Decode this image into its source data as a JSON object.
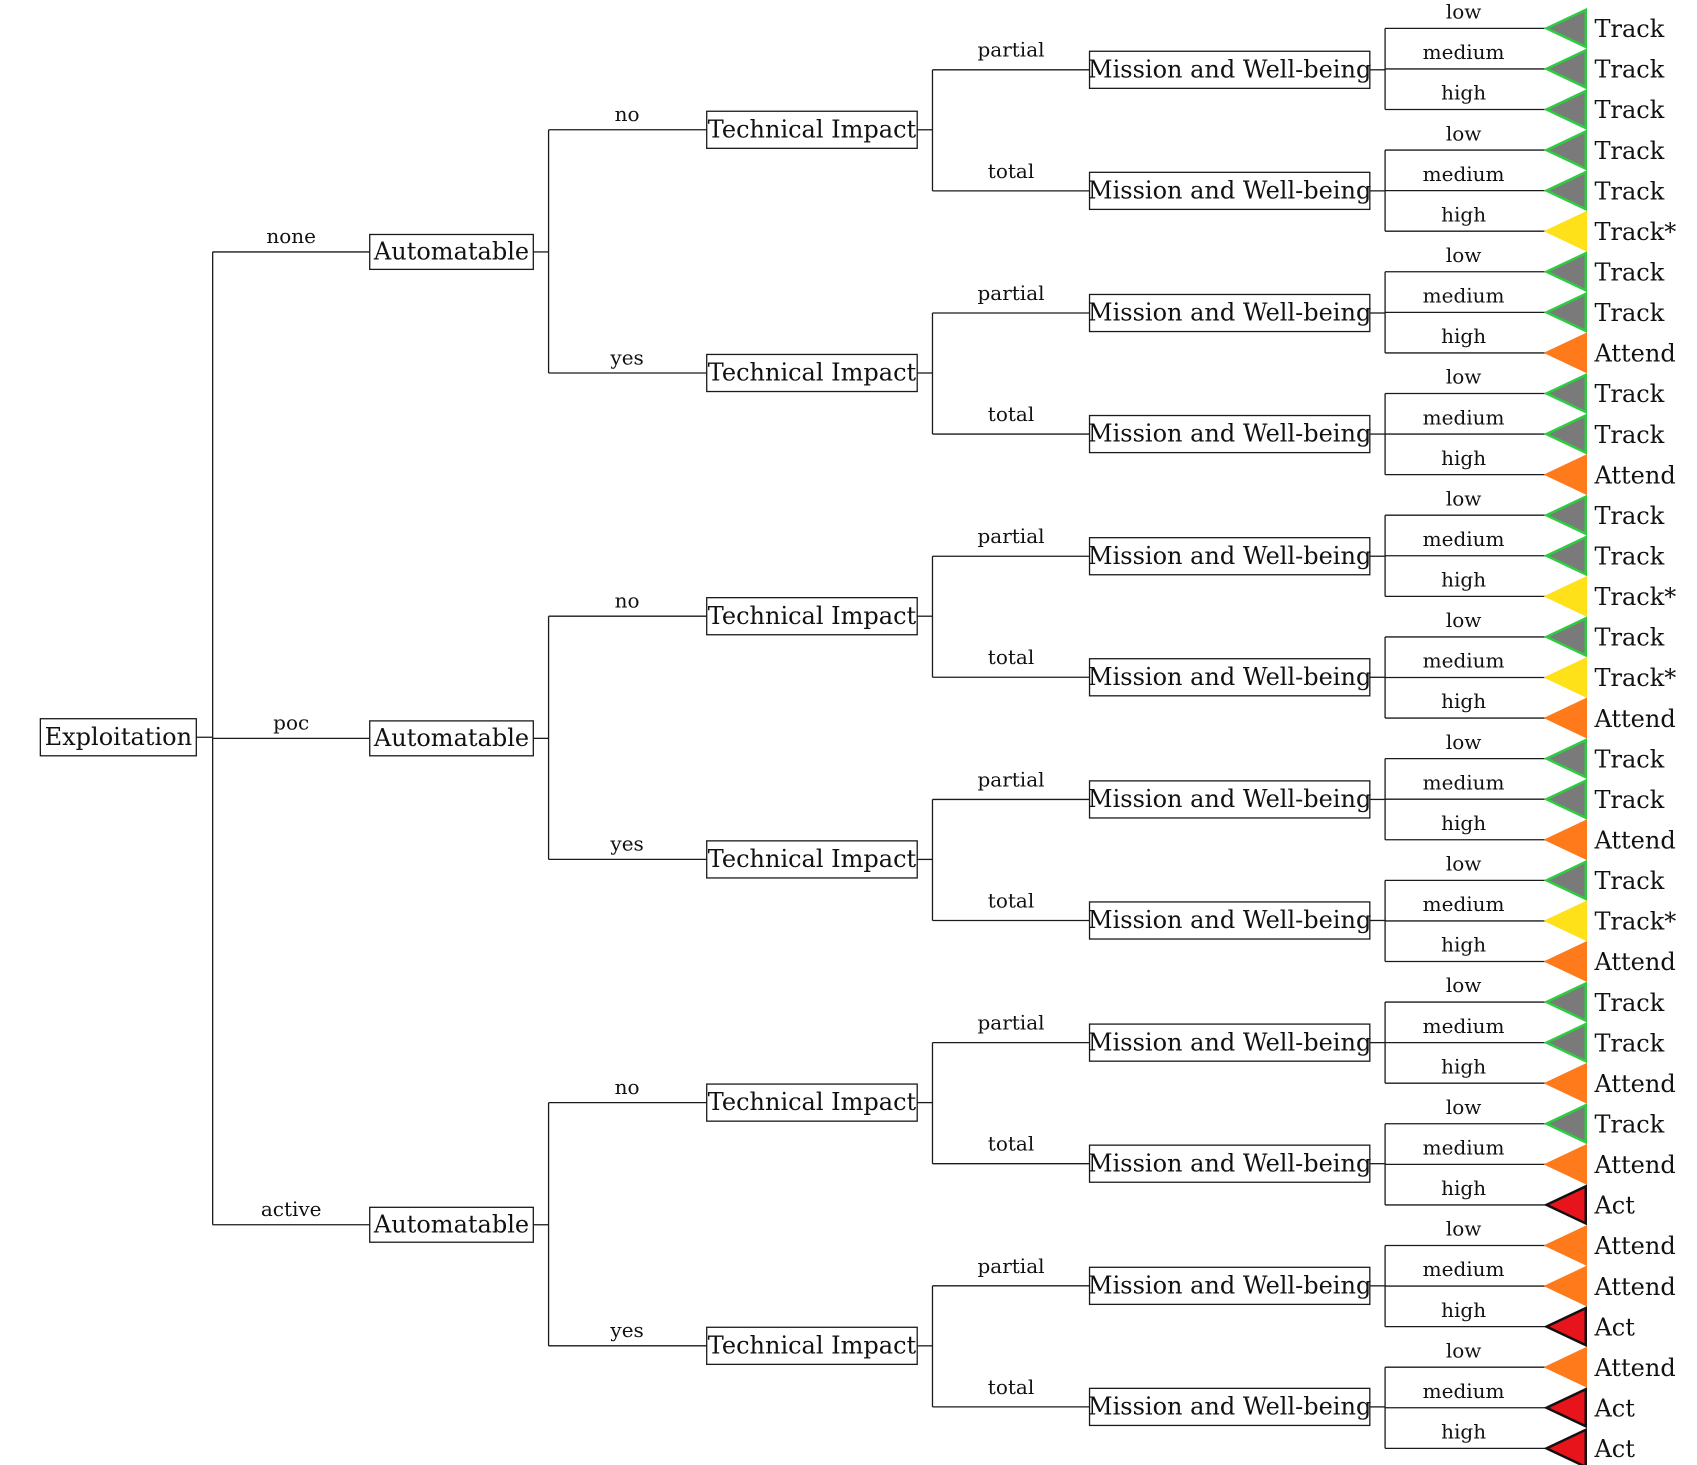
{
  "root": {
    "label": "Exploitation"
  },
  "levels": {
    "automatable": "Automatable",
    "technical_impact": "Technical Impact",
    "mission": "Mission and Well-being"
  },
  "edges": {
    "exploitation": [
      "none",
      "poc",
      "active"
    ],
    "automatable": [
      "no",
      "yes"
    ],
    "technical_impact": [
      "partial",
      "total"
    ],
    "mission": [
      "low",
      "medium",
      "high"
    ]
  },
  "outcome_styles": {
    "Track": {
      "fill": "#7a7a7a",
      "stroke": "#2ecc40"
    },
    "Track*": {
      "fill": "#ffe11a",
      "stroke": "#ffe11a"
    },
    "Attend": {
      "fill": "#ff7a1a",
      "stroke": "#ff7a1a"
    },
    "Act": {
      "fill": "#e8141b",
      "stroke": "#111111"
    }
  },
  "outcomes": [
    "Track",
    "Track",
    "Track",
    "Track",
    "Track",
    "Track*",
    "Track",
    "Track",
    "Attend",
    "Track",
    "Track",
    "Attend",
    "Track",
    "Track",
    "Track*",
    "Track",
    "Track*",
    "Attend",
    "Track",
    "Track",
    "Attend",
    "Track",
    "Track*",
    "Attend",
    "Track",
    "Track",
    "Attend",
    "Track",
    "Attend",
    "Act",
    "Attend",
    "Attend",
    "Act",
    "Attend",
    "Act",
    "Act"
  ]
}
